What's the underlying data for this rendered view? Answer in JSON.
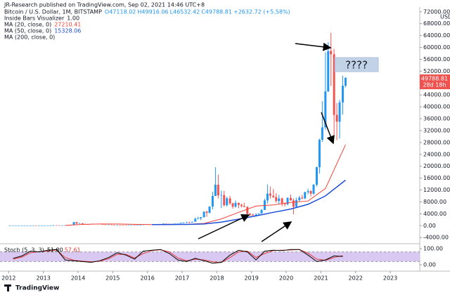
{
  "chart_data": {
    "type": "candlestick",
    "header": {
      "published": "JR-Research published on TradingView.com, Sep 02, 2021 14:46 UTC+8",
      "symbol": "Bitcoin / U.S. Dollar, 1M, BITSTAMP",
      "ohlc": [
        "O47118.02",
        "H49916.06",
        "L46532.42",
        "C49788.81"
      ],
      "change": "+2632.72 (+5.58%)"
    },
    "indicators": [
      {
        "name": "Inside Bars Visualizer",
        "value": "1.00"
      },
      {
        "name": "MA (200, close, 0)"
      }
    ],
    "currency": "USD",
    "countdown": "28d 18h",
    "annotations": [
      "????"
    ],
    "footer": "TradingView",
    "up_color": "#2196f3",
    "down_color": "#ef5350",
    "xlim": [
      2011.75,
      2023.85
    ],
    "xticks": [
      2012,
      2013,
      2014,
      2015,
      2016,
      2017,
      2018,
      2019,
      2020,
      2021,
      2022,
      2023
    ],
    "ylim": [
      -5600,
      73600
    ],
    "yticks": [
      {
        "value": -4000,
        "label": "-4000.00"
      },
      {
        "value": 0,
        "label": "0.00"
      },
      {
        "value": 4000,
        "label": "4000.00"
      },
      {
        "value": 8000,
        "label": "8000.00"
      },
      {
        "value": 12000,
        "label": "12000.00"
      },
      {
        "value": 16000,
        "label": "16000.00"
      },
      {
        "value": 20000,
        "label": "20000.00"
      },
      {
        "value": 24000,
        "label": "24000.00"
      },
      {
        "value": 28000,
        "label": "28000.00"
      },
      {
        "value": 32000,
        "label": "32000.00"
      },
      {
        "value": 36000,
        "label": "36000.00"
      },
      {
        "value": 40000,
        "label": "40000.00"
      },
      {
        "value": 44000,
        "label": "44000.00"
      },
      {
        "value": 48000,
        "label": "48000.00"
      },
      {
        "value": 52000,
        "label": "52000.00"
      },
      {
        "value": 56000,
        "label": "56000.00"
      },
      {
        "value": 60000,
        "label": "60000.00"
      },
      {
        "value": 64000,
        "label": "64000.00"
      },
      {
        "value": 68000,
        "label": "68000.00"
      },
      {
        "value": 72000,
        "label": "72000.00"
      }
    ],
    "x": [
      2012.04,
      2012.13,
      2012.21,
      2012.29,
      2012.38,
      2012.46,
      2012.54,
      2012.63,
      2012.71,
      2012.79,
      2012.88,
      2012.96,
      2013.04,
      2013.13,
      2013.21,
      2013.29,
      2013.38,
      2013.46,
      2013.54,
      2013.63,
      2013.71,
      2013.79,
      2013.88,
      2013.96,
      2014.04,
      2014.13,
      2014.21,
      2014.29,
      2014.38,
      2014.46,
      2014.54,
      2014.63,
      2014.71,
      2014.79,
      2014.88,
      2014.96,
      2015.04,
      2015.13,
      2015.21,
      2015.29,
      2015.38,
      2015.46,
      2015.54,
      2015.63,
      2015.71,
      2015.79,
      2015.88,
      2015.96,
      2016.04,
      2016.13,
      2016.21,
      2016.29,
      2016.38,
      2016.46,
      2016.54,
      2016.63,
      2016.71,
      2016.79,
      2016.88,
      2016.96,
      2017.04,
      2017.13,
      2017.21,
      2017.29,
      2017.38,
      2017.46,
      2017.54,
      2017.63,
      2017.71,
      2017.79,
      2017.88,
      2017.96,
      2018.04,
      2018.13,
      2018.21,
      2018.29,
      2018.38,
      2018.46,
      2018.54,
      2018.63,
      2018.71,
      2018.79,
      2018.88,
      2018.96,
      2019.04,
      2019.13,
      2019.21,
      2019.29,
      2019.38,
      2019.46,
      2019.54,
      2019.63,
      2019.71,
      2019.79,
      2019.88,
      2019.96,
      2020.04,
      2020.13,
      2020.21,
      2020.29,
      2020.38,
      2020.46,
      2020.54,
      2020.63,
      2020.71,
      2020.79,
      2020.88,
      2020.96,
      2021.04,
      2021.13,
      2021.21,
      2021.29,
      2021.38,
      2021.46,
      2021.54,
      2021.63,
      2021.71
    ],
    "open": [
      5,
      5,
      5,
      5,
      5,
      5,
      7,
      9,
      10,
      12,
      11,
      12,
      13,
      20,
      33,
      93,
      139,
      129,
      97,
      106,
      135,
      133,
      211,
      1205,
      757,
      800,
      550,
      457,
      448,
      627,
      640,
      586,
      478,
      387,
      338,
      378,
      320,
      217,
      254,
      244,
      236,
      230,
      263,
      284,
      230,
      236,
      314,
      378,
      430,
      369,
      437,
      416,
      448,
      531,
      673,
      624,
      575,
      609,
      700,
      742,
      963,
      970,
      1190,
      1080,
      1350,
      2300,
      2480,
      2870,
      4740,
      4340,
      6450,
      10000,
      13800,
      10200,
      10300,
      6900,
      9200,
      7500,
      6400,
      7700,
      7000,
      6600,
      6300,
      4000,
      3700,
      3440,
      3800,
      4100,
      5300,
      8500,
      10800,
      10100,
      9600,
      8300,
      9150,
      7550,
      7200,
      9350,
      8500,
      6400,
      8600,
      9450,
      9150,
      11300,
      11650,
      10780,
      13800,
      19700,
      28900,
      33100,
      45200,
      58800,
      57700,
      37300,
      35000,
      41500,
      47118.02
    ],
    "high": [
      7,
      6,
      6,
      6,
      6,
      7,
      9,
      16,
      13,
      13,
      13,
      14,
      21,
      34,
      95,
      266,
      140,
      130,
      110,
      138,
      140,
      220,
      1163,
      1240,
      1000,
      900,
      700,
      540,
      630,
      680,
      660,
      600,
      500,
      420,
      450,
      400,
      330,
      265,
      300,
      260,
      245,
      265,
      320,
      290,
      250,
      330,
      500,
      465,
      460,
      440,
      440,
      470,
      550,
      780,
      700,
      630,
      615,
      710,
      755,
      970,
      1150,
      1220,
      1350,
      1350,
      2760,
      3000,
      2940,
      4750,
      4980,
      6470,
      11400,
      19700,
      17200,
      11800,
      11700,
      9750,
      10000,
      7760,
      8500,
      7750,
      7400,
      7700,
      6550,
      4300,
      4060,
      4200,
      4100,
      5610,
      9100,
      13880,
      13200,
      12350,
      10950,
      10370,
      9500,
      7750,
      9550,
      10500,
      9190,
      9460,
      10080,
      10390,
      11440,
      12470,
      12000,
      14000,
      19860,
      29300,
      41950,
      58350,
      61780,
      64900,
      59500,
      41300,
      42400,
      50500,
      49916.06
    ],
    "low": [
      4,
      4,
      4,
      4,
      4,
      5,
      6,
      7,
      9,
      10,
      10,
      12,
      13,
      20,
      33,
      50,
      80,
      90,
      65,
      90,
      115,
      100,
      200,
      450,
      750,
      400,
      440,
      340,
      440,
      550,
      570,
      450,
      370,
      275,
      320,
      310,
      150,
      200,
      240,
      215,
      225,
      225,
      260,
      200,
      225,
      235,
      300,
      350,
      350,
      360,
      400,
      410,
      440,
      520,
      580,
      470,
      590,
      605,
      680,
      740,
      750,
      920,
      890,
      1080,
      1350,
      2200,
      1830,
      2700,
      2970,
      4110,
      5520,
      10000,
      9200,
      5900,
      6430,
      6430,
      7050,
      5760,
      6070,
      5880,
      6100,
      6200,
      3460,
      3130,
      3360,
      3360,
      3760,
      4060,
      5320,
      7440,
      9080,
      9330,
      7730,
      7300,
      6520,
      6420,
      6860,
      8430,
      3850,
      6150,
      8120,
      8940,
      8970,
      10580,
      9850,
      10370,
      13200,
      17570,
      28150,
      32300,
      45000,
      47000,
      30000,
      28800,
      29300,
      37400,
      46532.42
    ],
    "close": [
      5,
      5,
      5,
      5,
      5,
      7,
      9,
      10,
      12,
      11,
      12,
      13,
      20,
      33,
      93,
      139,
      129,
      97,
      106,
      135,
      133,
      211,
      1205,
      757,
      800,
      550,
      457,
      448,
      627,
      640,
      586,
      478,
      387,
      338,
      378,
      320,
      217,
      254,
      244,
      236,
      230,
      263,
      284,
      230,
      236,
      314,
      378,
      430,
      369,
      437,
      416,
      448,
      531,
      673,
      624,
      575,
      609,
      700,
      742,
      963,
      970,
      1190,
      1080,
      1350,
      2300,
      2480,
      2870,
      4740,
      4340,
      6450,
      10000,
      13800,
      10200,
      10300,
      6900,
      9200,
      7500,
      6400,
      7700,
      7000,
      6600,
      6300,
      4000,
      3700,
      3440,
      3800,
      4100,
      5300,
      8500,
      10800,
      10100,
      9600,
      8300,
      9150,
      7550,
      7200,
      9350,
      8500,
      6400,
      8600,
      9450,
      9150,
      11300,
      11650,
      10780,
      13800,
      19700,
      28900,
      33100,
      45200,
      58800,
      57700,
      37300,
      35000,
      41500,
      47100,
      49788.81
    ],
    "series": [
      {
        "name": "MA (20, close, 0)",
        "color": "#f44336",
        "x": [
          2013.63,
          2014.13,
          2014.63,
          2015.13,
          2015.63,
          2016.13,
          2016.63,
          2017.13,
          2017.63,
          2018.13,
          2018.63,
          2019.13,
          2019.63,
          2020.13,
          2020.63,
          2021.13,
          2021.71
        ],
        "values": [
          100,
          420,
          560,
          560,
          450,
          380,
          370,
          460,
          760,
          2300,
          4500,
          6600,
          7000,
          7800,
          8300,
          12500,
          27210.41
        ]
      },
      {
        "name": "MA (50, close, 0)",
        "color": "#1e4fd8",
        "x": [
          2016.13,
          2016.63,
          2017.13,
          2017.63,
          2018.13,
          2018.63,
          2019.13,
          2019.63,
          2020.13,
          2020.63,
          2021.13,
          2021.71
        ],
        "values": [
          360,
          400,
          440,
          560,
          1200,
          2200,
          3300,
          4500,
          5600,
          7200,
          10000,
          15328.06
        ]
      }
    ],
    "stoch": {
      "name": "Stoch (5, 3, 3)",
      "legend_values": [
        "51.80",
        "57.61"
      ],
      "ylim": [
        -35,
        122
      ],
      "band": [
        20,
        80
      ],
      "band_color": "#d9c8f2",
      "yticks": [
        {
          "value": 100,
          "label": "100.00"
        },
        {
          "value": 0,
          "label": "0.00"
        }
      ],
      "x": [
        2012.13,
        2012.38,
        2012.63,
        2012.88,
        2013.13,
        2013.38,
        2013.63,
        2013.88,
        2014.13,
        2014.38,
        2014.63,
        2014.88,
        2015.13,
        2015.38,
        2015.63,
        2015.88,
        2016.13,
        2016.38,
        2016.63,
        2016.88,
        2017.13,
        2017.38,
        2017.63,
        2017.88,
        2018.13,
        2018.38,
        2018.63,
        2018.88,
        2019.13,
        2019.38,
        2019.63,
        2019.88,
        2020.13,
        2020.38,
        2020.63,
        2020.88,
        2021.13,
        2021.38,
        2021.63
      ],
      "k": [
        40,
        55,
        85,
        80,
        90,
        95,
        30,
        25,
        20,
        15,
        25,
        45,
        75,
        60,
        35,
        85,
        90,
        95,
        70,
        30,
        20,
        40,
        25,
        10,
        15,
        60,
        90,
        80,
        30,
        85,
        90,
        88,
        95,
        95,
        60,
        20,
        30,
        55,
        51.8
      ],
      "d": [
        35,
        48,
        75,
        82,
        85,
        92,
        45,
        28,
        22,
        18,
        22,
        38,
        65,
        65,
        42,
        70,
        88,
        93,
        80,
        42,
        25,
        35,
        30,
        18,
        14,
        45,
        80,
        85,
        45,
        70,
        88,
        90,
        92,
        95,
        72,
        35,
        28,
        45,
        57.61
      ],
      "k_color": "#000000",
      "d_color": "#e53935"
    }
  }
}
